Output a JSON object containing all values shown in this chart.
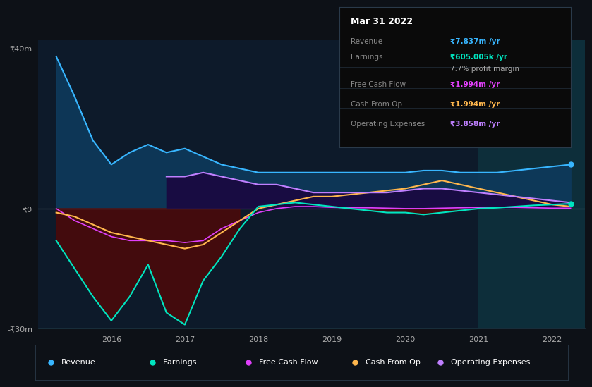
{
  "bg_color": "#0d1117",
  "plot_bg_color": "#0d1a2a",
  "grid_color": "#1e3a4a",
  "zero_line_color": "#ffffff",
  "ylim": [
    -30,
    42
  ],
  "xlim_start": 2015.0,
  "xlim_end": 2022.45,
  "yticks": [
    -30,
    0,
    40
  ],
  "ytick_labels": [
    "-₹30m",
    "₹0",
    "₹40m"
  ],
  "xtick_labels": [
    "2016",
    "2017",
    "2018",
    "2019",
    "2020",
    "2021",
    "2022"
  ],
  "xtick_positions": [
    2016,
    2017,
    2018,
    2019,
    2020,
    2021,
    2022
  ],
  "revenue_color": "#38b6ff",
  "earnings_color": "#00e5c0",
  "fcf_color": "#e040fb",
  "cashfromop_color": "#ffb74d",
  "opex_color": "#bf80ff",
  "revenue_fill_color": "#0d3a5c",
  "earnings_fill_color": "#4a0a0a",
  "opex_fill_color": "#1a0840",
  "table_bg": "#0a0a0a",
  "table_border": "#2a3a4a",
  "revenue_x": [
    2015.25,
    2015.5,
    2015.75,
    2016.0,
    2016.25,
    2016.5,
    2016.75,
    2017.0,
    2017.25,
    2017.5,
    2017.75,
    2018.0,
    2018.25,
    2018.5,
    2018.75,
    2019.0,
    2019.25,
    2019.5,
    2019.75,
    2020.0,
    2020.25,
    2020.5,
    2020.75,
    2021.0,
    2021.25,
    2021.5,
    2021.75,
    2022.0,
    2022.25
  ],
  "revenue_y": [
    38,
    28,
    17,
    11,
    14,
    16,
    14,
    15,
    13,
    11,
    10,
    9,
    9,
    9,
    9,
    9,
    9,
    9,
    9,
    9,
    9.5,
    9.5,
    9,
    9,
    9,
    9.5,
    10,
    10.5,
    11
  ],
  "earnings_x": [
    2015.25,
    2015.5,
    2015.75,
    2016.0,
    2016.25,
    2016.5,
    2016.75,
    2017.0,
    2017.25,
    2017.5,
    2017.75,
    2018.0,
    2018.25,
    2018.5,
    2018.75,
    2019.0,
    2019.25,
    2019.5,
    2019.75,
    2020.0,
    2020.25,
    2020.5,
    2020.75,
    2021.0,
    2021.25,
    2021.5,
    2021.75,
    2022.0,
    2022.25
  ],
  "earnings_y": [
    -8,
    -15,
    -22,
    -28,
    -22,
    -14,
    -26,
    -29,
    -18,
    -12,
    -5,
    0.5,
    1,
    1.5,
    1,
    0.5,
    0,
    -0.5,
    -1,
    -1,
    -1.5,
    -1,
    -0.5,
    0,
    0.2,
    0.5,
    0.8,
    1,
    1.2
  ],
  "fcf_x": [
    2015.25,
    2015.5,
    2015.75,
    2016.0,
    2016.25,
    2016.5,
    2016.75,
    2017.0,
    2017.25,
    2017.5,
    2017.75,
    2018.0,
    2018.25,
    2018.5,
    2018.75,
    2019.0,
    2019.25,
    2019.5,
    2019.75,
    2020.0,
    2020.25,
    2020.5,
    2020.75,
    2021.0,
    2021.25,
    2021.5,
    2021.75,
    2022.0,
    2022.25
  ],
  "fcf_y": [
    0,
    -3,
    -5,
    -7,
    -8,
    -8,
    -8,
    -8.5,
    -8,
    -5,
    -3,
    -1,
    0,
    0.5,
    0.5,
    0.3,
    0.2,
    0.2,
    0.1,
    0,
    0,
    0.1,
    0.2,
    0.3,
    0.3,
    0.3,
    0.2,
    0.1,
    0.1
  ],
  "cashfromop_x": [
    2015.25,
    2015.5,
    2015.75,
    2016.0,
    2016.25,
    2016.5,
    2016.75,
    2017.0,
    2017.25,
    2017.5,
    2017.75,
    2018.0,
    2018.25,
    2018.5,
    2018.75,
    2019.0,
    2019.25,
    2019.5,
    2019.75,
    2020.0,
    2020.25,
    2020.5,
    2020.75,
    2021.0,
    2021.25,
    2021.5,
    2021.75,
    2022.0,
    2022.25
  ],
  "cashfromop_y": [
    -1,
    -2,
    -4,
    -6,
    -7,
    -8,
    -9,
    -10,
    -9,
    -6,
    -3,
    0,
    1,
    2,
    3,
    3,
    3.5,
    4,
    4.5,
    5,
    6,
    7,
    6,
    5,
    4,
    3,
    2,
    1,
    0.5
  ],
  "opex_x": [
    2016.75,
    2017.0,
    2017.25,
    2017.5,
    2017.75,
    2018.0,
    2018.25,
    2018.5,
    2018.75,
    2019.0,
    2019.25,
    2019.5,
    2019.75,
    2020.0,
    2020.25,
    2020.5,
    2020.75,
    2021.0,
    2021.25,
    2021.5,
    2021.75,
    2022.0,
    2022.25
  ],
  "opex_y": [
    8,
    8,
    9,
    8,
    7,
    6,
    6,
    5,
    4,
    4,
    4,
    4,
    4,
    4.5,
    5,
    5,
    4.5,
    4,
    3.5,
    3,
    2.5,
    2,
    1.5
  ],
  "table_title": "Mar 31 2022",
  "table_rows": [
    {
      "label": "Revenue",
      "value": "₹7.837m /yr",
      "value_color": "#38b6ff"
    },
    {
      "label": "Earnings",
      "value": "₹605.005k /yr",
      "value_color": "#00e5c0"
    },
    {
      "label": "",
      "value": "7.7% profit margin",
      "value_color": "#aaaaaa"
    },
    {
      "label": "Free Cash Flow",
      "value": "₹1.994m /yr",
      "value_color": "#e040fb"
    },
    {
      "label": "Cash From Op",
      "value": "₹1.994m /yr",
      "value_color": "#ffb74d"
    },
    {
      "label": "Operating Expenses",
      "value": "₹3.858m /yr",
      "value_color": "#bf80ff"
    }
  ],
  "legend_items": [
    {
      "label": "Revenue",
      "color": "#38b6ff"
    },
    {
      "label": "Earnings",
      "color": "#00e5c0"
    },
    {
      "label": "Free Cash Flow",
      "color": "#e040fb"
    },
    {
      "label": "Cash From Op",
      "color": "#ffb74d"
    },
    {
      "label": "Operating Expenses",
      "color": "#bf80ff"
    }
  ]
}
